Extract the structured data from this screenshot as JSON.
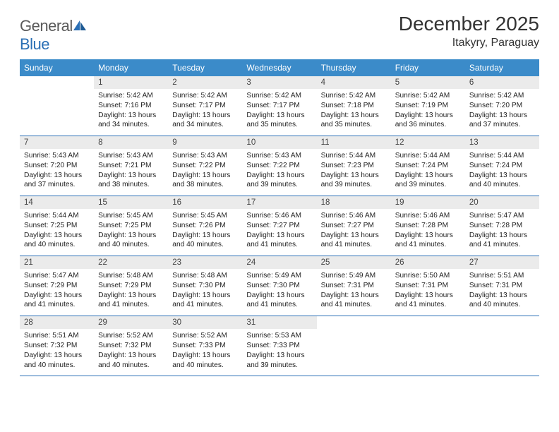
{
  "brand": {
    "name_part1": "General",
    "name_part2": "Blue"
  },
  "title": "December 2025",
  "location": "Itakyry, Paraguay",
  "colors": {
    "header_bg": "#3b8bc9",
    "header_text": "#ffffff",
    "daynum_bg": "#ebebeb",
    "row_border": "#2a6fb5",
    "brand_gray": "#5a5a5a",
    "brand_blue": "#2a6fb5"
  },
  "typography": {
    "title_fontsize": 28,
    "location_fontsize": 16,
    "dayheader_fontsize": 12,
    "daynum_fontsize": 11.5,
    "detail_fontsize": 10.2
  },
  "day_headers": [
    "Sunday",
    "Monday",
    "Tuesday",
    "Wednesday",
    "Thursday",
    "Friday",
    "Saturday"
  ],
  "weeks": [
    {
      "nums": [
        "",
        "1",
        "2",
        "3",
        "4",
        "5",
        "6"
      ],
      "details": [
        "",
        "Sunrise: 5:42 AM\nSunset: 7:16 PM\nDaylight: 13 hours and 34 minutes.",
        "Sunrise: 5:42 AM\nSunset: 7:17 PM\nDaylight: 13 hours and 34 minutes.",
        "Sunrise: 5:42 AM\nSunset: 7:17 PM\nDaylight: 13 hours and 35 minutes.",
        "Sunrise: 5:42 AM\nSunset: 7:18 PM\nDaylight: 13 hours and 35 minutes.",
        "Sunrise: 5:42 AM\nSunset: 7:19 PM\nDaylight: 13 hours and 36 minutes.",
        "Sunrise: 5:42 AM\nSunset: 7:20 PM\nDaylight: 13 hours and 37 minutes."
      ]
    },
    {
      "nums": [
        "7",
        "8",
        "9",
        "10",
        "11",
        "12",
        "13"
      ],
      "details": [
        "Sunrise: 5:43 AM\nSunset: 7:20 PM\nDaylight: 13 hours and 37 minutes.",
        "Sunrise: 5:43 AM\nSunset: 7:21 PM\nDaylight: 13 hours and 38 minutes.",
        "Sunrise: 5:43 AM\nSunset: 7:22 PM\nDaylight: 13 hours and 38 minutes.",
        "Sunrise: 5:43 AM\nSunset: 7:22 PM\nDaylight: 13 hours and 39 minutes.",
        "Sunrise: 5:44 AM\nSunset: 7:23 PM\nDaylight: 13 hours and 39 minutes.",
        "Sunrise: 5:44 AM\nSunset: 7:24 PM\nDaylight: 13 hours and 39 minutes.",
        "Sunrise: 5:44 AM\nSunset: 7:24 PM\nDaylight: 13 hours and 40 minutes."
      ]
    },
    {
      "nums": [
        "14",
        "15",
        "16",
        "17",
        "18",
        "19",
        "20"
      ],
      "details": [
        "Sunrise: 5:44 AM\nSunset: 7:25 PM\nDaylight: 13 hours and 40 minutes.",
        "Sunrise: 5:45 AM\nSunset: 7:25 PM\nDaylight: 13 hours and 40 minutes.",
        "Sunrise: 5:45 AM\nSunset: 7:26 PM\nDaylight: 13 hours and 40 minutes.",
        "Sunrise: 5:46 AM\nSunset: 7:27 PM\nDaylight: 13 hours and 41 minutes.",
        "Sunrise: 5:46 AM\nSunset: 7:27 PM\nDaylight: 13 hours and 41 minutes.",
        "Sunrise: 5:46 AM\nSunset: 7:28 PM\nDaylight: 13 hours and 41 minutes.",
        "Sunrise: 5:47 AM\nSunset: 7:28 PM\nDaylight: 13 hours and 41 minutes."
      ]
    },
    {
      "nums": [
        "21",
        "22",
        "23",
        "24",
        "25",
        "26",
        "27"
      ],
      "details": [
        "Sunrise: 5:47 AM\nSunset: 7:29 PM\nDaylight: 13 hours and 41 minutes.",
        "Sunrise: 5:48 AM\nSunset: 7:29 PM\nDaylight: 13 hours and 41 minutes.",
        "Sunrise: 5:48 AM\nSunset: 7:30 PM\nDaylight: 13 hours and 41 minutes.",
        "Sunrise: 5:49 AM\nSunset: 7:30 PM\nDaylight: 13 hours and 41 minutes.",
        "Sunrise: 5:49 AM\nSunset: 7:31 PM\nDaylight: 13 hours and 41 minutes.",
        "Sunrise: 5:50 AM\nSunset: 7:31 PM\nDaylight: 13 hours and 41 minutes.",
        "Sunrise: 5:51 AM\nSunset: 7:31 PM\nDaylight: 13 hours and 40 minutes."
      ]
    },
    {
      "nums": [
        "28",
        "29",
        "30",
        "31",
        "",
        "",
        ""
      ],
      "details": [
        "Sunrise: 5:51 AM\nSunset: 7:32 PM\nDaylight: 13 hours and 40 minutes.",
        "Sunrise: 5:52 AM\nSunset: 7:32 PM\nDaylight: 13 hours and 40 minutes.",
        "Sunrise: 5:52 AM\nSunset: 7:33 PM\nDaylight: 13 hours and 40 minutes.",
        "Sunrise: 5:53 AM\nSunset: 7:33 PM\nDaylight: 13 hours and 39 minutes.",
        "",
        "",
        ""
      ]
    }
  ]
}
